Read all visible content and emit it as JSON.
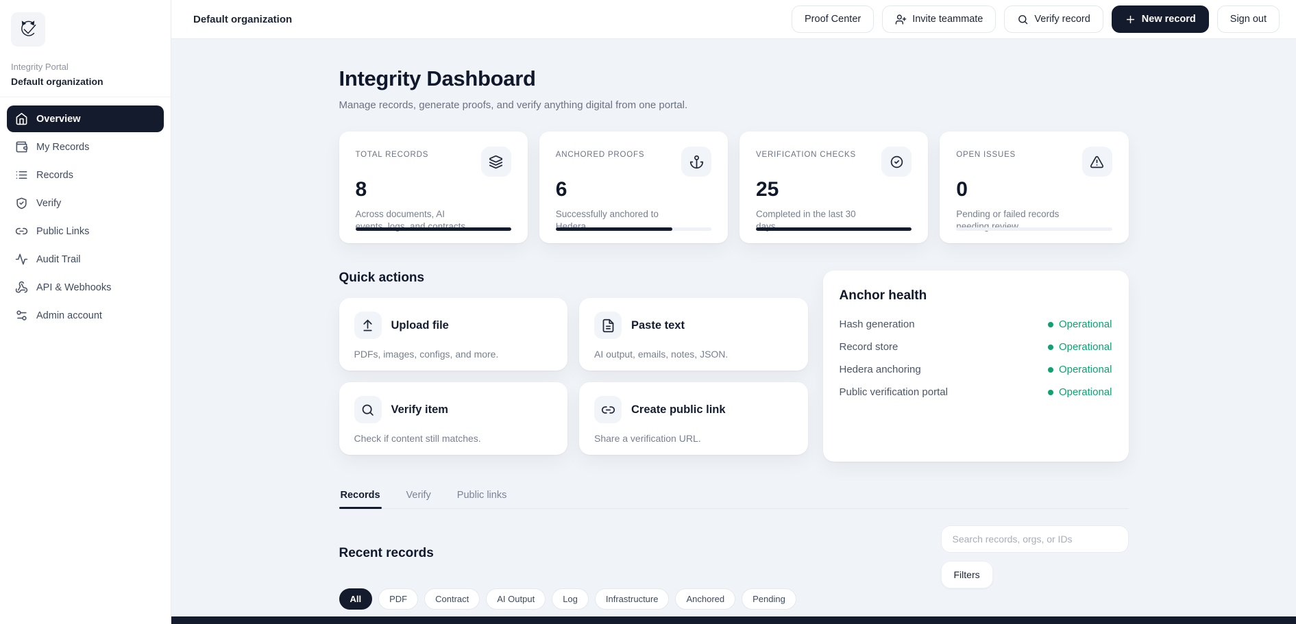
{
  "sidebar": {
    "portal_name": "Integrity Portal",
    "org_name": "Default organization",
    "items": [
      {
        "label": "Overview",
        "active": true
      },
      {
        "label": "My Records",
        "active": false
      },
      {
        "label": "Records",
        "active": false
      },
      {
        "label": "Verify",
        "active": false
      },
      {
        "label": "Public Links",
        "active": false
      },
      {
        "label": "Audit Trail",
        "active": false
      },
      {
        "label": "API & Webhooks",
        "active": false
      },
      {
        "label": "Admin account",
        "active": false
      }
    ]
  },
  "header": {
    "org_label": "Default organization",
    "proof_center_label": "Proof Center",
    "invite_label": "Invite teammate",
    "verify_record_label": "Verify record",
    "new_record_label": "New record",
    "new_record_plus": "+",
    "sign_out_label": "Sign out"
  },
  "page": {
    "title": "Integrity Dashboard",
    "subtitle": "Manage records, generate proofs, and verify anything digital from one portal."
  },
  "stats": [
    {
      "label": "TOTAL RECORDS",
      "value": "8",
      "description": "Across documents, AI events, logs, and contracts",
      "icon": "layers-icon",
      "progress": 100
    },
    {
      "label": "ANCHORED PROOFS",
      "value": "6",
      "description": "Successfully anchored to Hedera",
      "icon": "anchor-icon",
      "progress": 75
    },
    {
      "label": "VERIFICATION CHECKS",
      "value": "25",
      "description": "Completed in the last 30 days",
      "icon": "check-circle-icon",
      "progress": 100
    },
    {
      "label": "OPEN ISSUES",
      "value": "0",
      "description": "Pending or failed records needing review",
      "icon": "alert-triangle-icon",
      "progress": 0
    }
  ],
  "quick_actions": {
    "title": "Quick actions",
    "items": [
      {
        "label": "Upload file",
        "description": "PDFs, images, configs, and more.",
        "icon": "upload-icon"
      },
      {
        "label": "Paste text",
        "description": "AI output, emails, notes, JSON.",
        "icon": "file-text-icon"
      },
      {
        "label": "Verify item",
        "description": "Check if content still matches.",
        "icon": "search-icon"
      },
      {
        "label": "Create public link",
        "description": "Share a verification URL.",
        "icon": "link-icon"
      }
    ]
  },
  "anchor_health": {
    "title": "Anchor health",
    "status_color": "#0da271",
    "rows": [
      {
        "name": "Hash generation",
        "status": "Operational"
      },
      {
        "name": "Record store",
        "status": "Operational"
      },
      {
        "name": "Hedera anchoring",
        "status": "Operational"
      },
      {
        "name": "Public verification portal",
        "status": "Operational"
      }
    ]
  },
  "tabs": [
    {
      "label": "Records",
      "active": true
    },
    {
      "label": "Verify",
      "active": false
    },
    {
      "label": "Public links",
      "active": false
    }
  ],
  "records_section": {
    "title": "Recent records",
    "search_placeholder": "Search records, orgs, or IDs",
    "filters_label": "Filters",
    "chips": [
      {
        "label": "All",
        "active": true
      },
      {
        "label": "PDF",
        "active": false
      },
      {
        "label": "Contract",
        "active": false
      },
      {
        "label": "AI Output",
        "active": false
      },
      {
        "label": "Log",
        "active": false
      },
      {
        "label": "Infrastructure",
        "active": false
      },
      {
        "label": "Anchored",
        "active": false
      },
      {
        "label": "Pending",
        "active": false
      }
    ]
  },
  "colors": {
    "accent_dark": "#141b2c",
    "status_green": "#0da271",
    "background": "#f0f3f7"
  }
}
